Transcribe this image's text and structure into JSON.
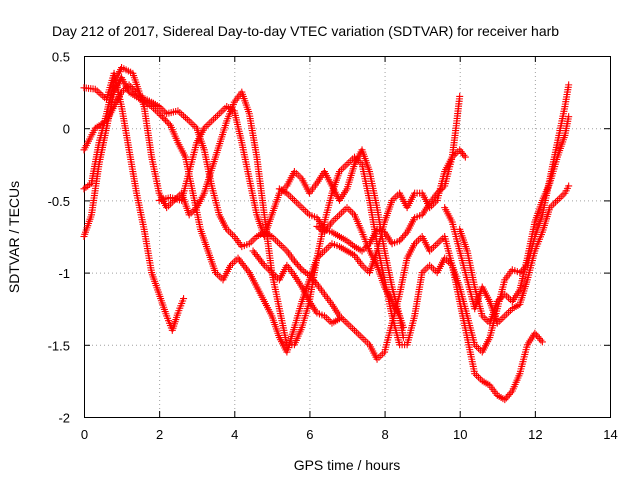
{
  "chart_data": {
    "type": "scatter",
    "title": "Day 212 of 2017, Sidereal Day-to-day VTEC variation (SDTVAR) for receiver harb",
    "xlabel": "GPS time / hours",
    "ylabel": "SDTVAR / TECUs",
    "xlim": [
      0,
      14
    ],
    "ylim": [
      -2,
      0.5
    ],
    "xticks": [
      0,
      2,
      4,
      6,
      8,
      10,
      12,
      14
    ],
    "yticks": [
      0.5,
      0,
      -0.5,
      -1,
      -1.5,
      -2
    ],
    "xtick_labels": [
      "0",
      "2",
      "4",
      "6",
      "8",
      "10",
      "12",
      "14"
    ],
    "ytick_labels": [
      "0.5",
      "0",
      "-0.5",
      "-1",
      "-1.5",
      "-2"
    ],
    "grid": true,
    "legend": "none",
    "marker": "+",
    "color": "#ff0000",
    "series": [
      {
        "name": "trace-1",
        "points": [
          [
            0.0,
            0.28
          ],
          [
            0.3,
            0.27
          ],
          [
            0.6,
            0.2
          ],
          [
            0.8,
            0.38
          ],
          [
            1.0,
            0.15
          ],
          [
            1.2,
            -0.15
          ],
          [
            1.4,
            -0.45
          ],
          [
            1.6,
            -0.7
          ],
          [
            1.8,
            -1.0
          ],
          [
            2.0,
            -1.15
          ],
          [
            2.2,
            -1.3
          ],
          [
            2.35,
            -1.4
          ],
          [
            2.5,
            -1.28
          ],
          [
            2.65,
            -1.18
          ]
        ]
      },
      {
        "name": "trace-2",
        "points": [
          [
            0.0,
            -0.42
          ],
          [
            0.2,
            -0.38
          ],
          [
            0.4,
            -0.1
          ],
          [
            0.6,
            0.1
          ],
          [
            0.8,
            0.32
          ],
          [
            1.0,
            0.42
          ],
          [
            1.3,
            0.38
          ],
          [
            1.6,
            0.15
          ],
          [
            1.8,
            -0.2
          ],
          [
            2.0,
            -0.45
          ],
          [
            2.2,
            -0.55
          ],
          [
            2.4,
            -0.5
          ],
          [
            2.6,
            -0.45
          ],
          [
            2.8,
            -0.6
          ],
          [
            3.0,
            -0.55
          ],
          [
            3.2,
            -0.45
          ],
          [
            3.5,
            -0.2
          ],
          [
            3.8,
            0.05
          ],
          [
            4.0,
            0.18
          ],
          [
            4.2,
            0.25
          ],
          [
            4.4,
            0.1
          ],
          [
            4.6,
            -0.2
          ],
          [
            4.8,
            -0.6
          ],
          [
            5.0,
            -1.0
          ],
          [
            5.2,
            -1.25
          ],
          [
            5.4,
            -1.5
          ],
          [
            5.6,
            -1.5
          ],
          [
            5.8,
            -1.38
          ],
          [
            6.0,
            -1.2
          ],
          [
            6.2,
            -0.9
          ],
          [
            6.4,
            -0.65
          ],
          [
            6.6,
            -0.45
          ],
          [
            6.8,
            -0.3
          ],
          [
            7.0,
            -0.25
          ],
          [
            7.2,
            -0.2
          ],
          [
            7.4,
            -0.25
          ],
          [
            7.6,
            -0.5
          ],
          [
            7.8,
            -0.8
          ],
          [
            8.0,
            -1.05
          ],
          [
            8.2,
            -1.3
          ],
          [
            8.4,
            -1.5
          ],
          [
            8.6,
            -1.5
          ],
          [
            8.8,
            -1.3
          ],
          [
            9.0,
            -1.0
          ],
          [
            9.2,
            -0.95
          ],
          [
            9.4,
            -1.0
          ],
          [
            9.6,
            -0.9
          ],
          [
            9.8,
            -0.95
          ],
          [
            10.0,
            -1.2
          ],
          [
            10.2,
            -1.45
          ],
          [
            10.4,
            -1.7
          ],
          [
            10.6,
            -1.75
          ],
          [
            10.8,
            -1.78
          ],
          [
            11.0,
            -1.85
          ],
          [
            11.2,
            -1.88
          ],
          [
            11.4,
            -1.82
          ],
          [
            11.6,
            -1.7
          ],
          [
            11.8,
            -1.5
          ],
          [
            12.0,
            -1.42
          ],
          [
            12.2,
            -1.48
          ]
        ]
      },
      {
        "name": "trace-3",
        "points": [
          [
            0.0,
            -0.75
          ],
          [
            0.2,
            -0.6
          ],
          [
            0.4,
            -0.25
          ],
          [
            0.6,
            0.0
          ],
          [
            0.8,
            0.25
          ],
          [
            1.0,
            0.35
          ],
          [
            1.2,
            0.25
          ],
          [
            1.5,
            0.2
          ],
          [
            1.8,
            0.15
          ],
          [
            2.0,
            0.1
          ],
          [
            2.3,
            0.02
          ],
          [
            2.5,
            -0.1
          ],
          [
            2.7,
            -0.2
          ],
          [
            2.9,
            -0.45
          ],
          [
            3.1,
            -0.7
          ],
          [
            3.3,
            -0.85
          ],
          [
            3.5,
            -1.0
          ],
          [
            3.7,
            -1.05
          ],
          [
            3.9,
            -0.95
          ],
          [
            4.1,
            -0.9
          ],
          [
            4.4,
            -1.0
          ],
          [
            4.6,
            -1.1
          ],
          [
            4.8,
            -1.2
          ],
          [
            5.0,
            -1.3
          ],
          [
            5.2,
            -1.45
          ],
          [
            5.4,
            -1.55
          ],
          [
            5.6,
            -1.38
          ],
          [
            5.8,
            -1.2
          ],
          [
            6.0,
            -1.05
          ],
          [
            6.2,
            -0.9
          ],
          [
            6.4,
            -0.85
          ],
          [
            6.6,
            -0.8
          ],
          [
            6.8,
            -0.82
          ],
          [
            7.0,
            -0.85
          ],
          [
            7.2,
            -0.88
          ],
          [
            7.4,
            -0.95
          ],
          [
            7.6,
            -1.0
          ],
          [
            7.8,
            -0.85
          ],
          [
            8.0,
            -0.65
          ],
          [
            8.2,
            -0.5
          ],
          [
            8.4,
            -0.45
          ],
          [
            8.6,
            -0.55
          ],
          [
            8.8,
            -0.45
          ],
          [
            9.0,
            -0.45
          ],
          [
            9.2,
            -0.55
          ],
          [
            9.4,
            -0.5
          ],
          [
            9.6,
            -0.3
          ],
          [
            9.8,
            -0.2
          ],
          [
            10.0,
            -0.15
          ],
          [
            10.15,
            -0.2
          ]
        ]
      },
      {
        "name": "trace-4",
        "points": [
          [
            0.0,
            -0.15
          ],
          [
            0.3,
            0.0
          ],
          [
            0.6,
            0.05
          ],
          [
            0.8,
            0.15
          ],
          [
            1.0,
            0.25
          ],
          [
            1.2,
            0.3
          ],
          [
            1.5,
            0.22
          ],
          [
            1.8,
            0.18
          ],
          [
            2.0,
            0.15
          ],
          [
            2.2,
            0.1
          ],
          [
            2.5,
            0.12
          ],
          [
            2.8,
            0.05
          ],
          [
            3.0,
            0.0
          ],
          [
            3.2,
            -0.15
          ],
          [
            3.4,
            -0.4
          ],
          [
            3.6,
            -0.6
          ],
          [
            3.8,
            -0.7
          ],
          [
            4.0,
            -0.75
          ],
          [
            4.2,
            -0.82
          ],
          [
            4.4,
            -0.8
          ],
          [
            4.6,
            -0.75
          ],
          [
            4.8,
            -0.72
          ],
          [
            5.0,
            -0.75
          ],
          [
            5.2,
            -0.8
          ],
          [
            5.4,
            -0.85
          ],
          [
            5.6,
            -0.92
          ],
          [
            5.8,
            -0.98
          ],
          [
            6.0,
            -1.02
          ],
          [
            6.2,
            -1.08
          ],
          [
            6.4,
            -1.15
          ],
          [
            6.6,
            -1.22
          ],
          [
            6.8,
            -1.3
          ],
          [
            7.0,
            -1.35
          ],
          [
            7.2,
            -1.4
          ],
          [
            7.4,
            -1.45
          ],
          [
            7.6,
            -1.5
          ],
          [
            7.8,
            -1.6
          ],
          [
            8.0,
            -1.55
          ],
          [
            8.2,
            -1.35
          ],
          [
            8.4,
            -1.15
          ],
          [
            8.6,
            -0.9
          ],
          [
            8.8,
            -0.8
          ],
          [
            9.0,
            -0.75
          ],
          [
            9.2,
            -0.85
          ],
          [
            9.4,
            -0.8
          ],
          [
            9.6,
            -0.75
          ],
          [
            9.8,
            -0.95
          ],
          [
            10.0,
            -1.1
          ],
          [
            10.2,
            -1.3
          ],
          [
            10.4,
            -1.5
          ],
          [
            10.6,
            -1.55
          ],
          [
            10.8,
            -1.45
          ],
          [
            11.0,
            -1.25
          ],
          [
            11.2,
            -1.05
          ],
          [
            11.4,
            -0.98
          ],
          [
            11.6,
            -1.0
          ],
          [
            11.8,
            -0.95
          ],
          [
            12.0,
            -0.75
          ],
          [
            12.2,
            -0.6
          ],
          [
            12.4,
            -0.35
          ],
          [
            12.6,
            -0.1
          ],
          [
            12.8,
            0.15
          ],
          [
            12.9,
            0.3
          ]
        ]
      },
      {
        "name": "trace-5",
        "points": [
          [
            2.0,
            -0.5
          ],
          [
            2.3,
            -0.48
          ],
          [
            2.6,
            -0.5
          ],
          [
            2.8,
            -0.3
          ],
          [
            3.0,
            -0.1
          ],
          [
            3.2,
            0.0
          ],
          [
            3.4,
            0.05
          ],
          [
            3.6,
            0.1
          ],
          [
            3.8,
            0.15
          ],
          [
            4.0,
            0.12
          ],
          [
            4.2,
            -0.1
          ],
          [
            4.4,
            -0.35
          ],
          [
            4.6,
            -0.6
          ],
          [
            4.8,
            -0.75
          ],
          [
            5.0,
            -0.6
          ],
          [
            5.2,
            -0.45
          ],
          [
            5.4,
            -0.4
          ],
          [
            5.6,
            -0.3
          ],
          [
            5.8,
            -0.35
          ],
          [
            6.0,
            -0.45
          ],
          [
            6.2,
            -0.38
          ],
          [
            6.4,
            -0.3
          ],
          [
            6.6,
            -0.4
          ],
          [
            6.8,
            -0.5
          ],
          [
            7.0,
            -0.42
          ],
          [
            7.2,
            -0.25
          ],
          [
            7.4,
            -0.15
          ],
          [
            7.6,
            -0.3
          ],
          [
            7.8,
            -0.55
          ],
          [
            8.0,
            -0.85
          ],
          [
            8.2,
            -1.1
          ],
          [
            8.4,
            -1.3
          ],
          [
            8.5,
            -1.45
          ]
        ]
      },
      {
        "name": "trace-6",
        "points": [
          [
            4.5,
            -0.85
          ],
          [
            4.8,
            -0.95
          ],
          [
            5.0,
            -1.0
          ],
          [
            5.2,
            -1.05
          ],
          [
            5.4,
            -0.95
          ],
          [
            5.6,
            -1.02
          ],
          [
            5.8,
            -1.1
          ],
          [
            6.0,
            -1.2
          ],
          [
            6.2,
            -1.28
          ],
          [
            6.4,
            -1.3
          ],
          [
            6.6,
            -1.35
          ],
          [
            6.8,
            -1.32
          ]
        ]
      },
      {
        "name": "trace-7",
        "points": [
          [
            5.2,
            -0.42
          ],
          [
            5.4,
            -0.45
          ],
          [
            5.6,
            -0.5
          ],
          [
            5.8,
            -0.55
          ],
          [
            6.0,
            -0.6
          ],
          [
            6.2,
            -0.62
          ],
          [
            6.4,
            -0.7
          ],
          [
            6.6,
            -0.72
          ],
          [
            6.8,
            -0.75
          ],
          [
            7.0,
            -0.78
          ],
          [
            7.2,
            -0.82
          ],
          [
            7.4,
            -0.85
          ],
          [
            7.6,
            -0.8
          ],
          [
            7.8,
            -0.7
          ],
          [
            8.0,
            -0.72
          ],
          [
            8.2,
            -0.8
          ],
          [
            8.4,
            -0.78
          ],
          [
            8.6,
            -0.72
          ],
          [
            8.8,
            -0.62
          ],
          [
            9.0,
            -0.6
          ],
          [
            9.2,
            -0.52
          ],
          [
            9.4,
            -0.45
          ],
          [
            9.6,
            -0.4
          ],
          [
            9.8,
            -0.2
          ],
          [
            9.9,
            0.0
          ],
          [
            10.0,
            0.22
          ]
        ]
      },
      {
        "name": "trace-8",
        "points": [
          [
            10.0,
            -0.7
          ],
          [
            10.2,
            -0.85
          ],
          [
            10.4,
            -1.1
          ],
          [
            10.6,
            -1.3
          ],
          [
            10.8,
            -1.35
          ],
          [
            11.0,
            -1.2
          ],
          [
            11.2,
            -1.15
          ],
          [
            11.4,
            -1.2
          ],
          [
            11.6,
            -1.12
          ],
          [
            11.8,
            -0.9
          ],
          [
            12.0,
            -0.65
          ],
          [
            12.2,
            -0.5
          ],
          [
            12.4,
            -0.38
          ],
          [
            12.6,
            -0.2
          ],
          [
            12.8,
            -0.05
          ],
          [
            12.9,
            0.08
          ]
        ]
      },
      {
        "name": "trace-9",
        "points": [
          [
            9.6,
            -0.55
          ],
          [
            9.8,
            -0.65
          ],
          [
            10.0,
            -0.85
          ],
          [
            10.2,
            -1.05
          ],
          [
            10.4,
            -1.25
          ],
          [
            10.6,
            -1.1
          ],
          [
            10.8,
            -1.2
          ],
          [
            11.0,
            -1.35
          ],
          [
            11.2,
            -1.3
          ],
          [
            11.4,
            -1.25
          ],
          [
            11.6,
            -1.22
          ],
          [
            11.8,
            -1.05
          ],
          [
            12.0,
            -0.85
          ],
          [
            12.2,
            -0.72
          ],
          [
            12.4,
            -0.55
          ],
          [
            12.6,
            -0.5
          ],
          [
            12.8,
            -0.45
          ],
          [
            12.9,
            -0.4
          ]
        ]
      },
      {
        "name": "trace-10",
        "points": [
          [
            6.2,
            -0.68
          ],
          [
            6.4,
            -0.72
          ],
          [
            6.6,
            -0.65
          ],
          [
            6.8,
            -0.6
          ],
          [
            7.0,
            -0.55
          ],
          [
            7.2,
            -0.6
          ],
          [
            7.4,
            -0.72
          ],
          [
            7.6,
            -0.85
          ],
          [
            7.8,
            -0.95
          ],
          [
            8.0,
            -1.1
          ],
          [
            8.2,
            -1.2
          ],
          [
            8.4,
            -1.3
          ],
          [
            8.5,
            -1.38
          ]
        ]
      }
    ]
  }
}
